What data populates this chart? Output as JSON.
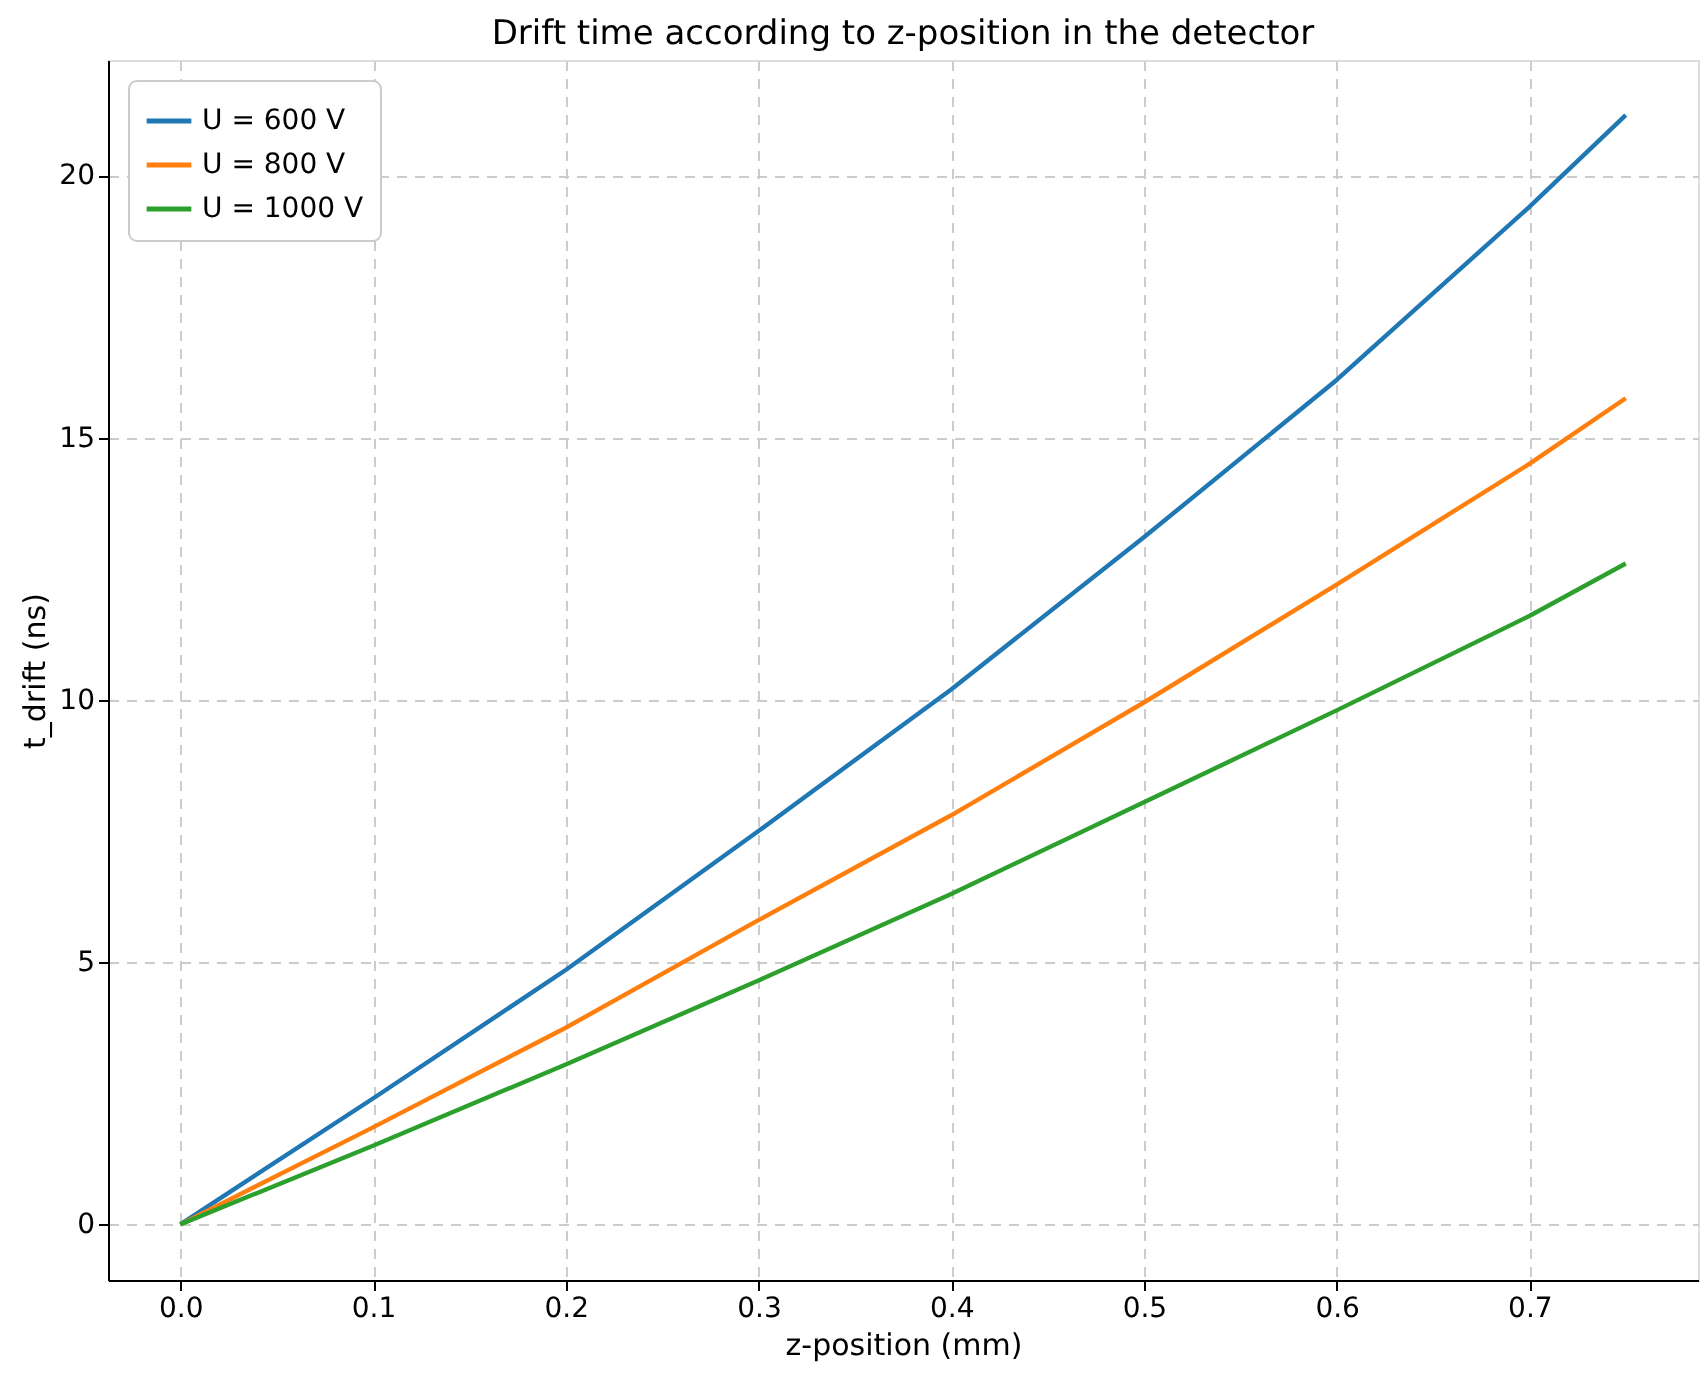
{
  "chart_data": {
    "type": "line",
    "title": "Drift time according to z-position in the detector",
    "xlabel": "z-position (mm)",
    "ylabel": "t_drift (ns)",
    "x": [
      0.0,
      0.1,
      0.2,
      0.3,
      0.4,
      0.5,
      0.6,
      0.7,
      0.75
    ],
    "series": [
      {
        "name": "U = 600 V",
        "color": "#1f77b4",
        "values": [
          0,
          2.4,
          4.85,
          7.5,
          10.2,
          13.1,
          16.1,
          19.4,
          21.15
        ]
      },
      {
        "name": "U = 800 V",
        "color": "#ff7f0e",
        "values": [
          0,
          1.85,
          3.75,
          5.8,
          7.8,
          9.95,
          12.2,
          14.5,
          15.75
        ]
      },
      {
        "name": "U = 1000 V",
        "color": "#2ca02c",
        "values": [
          0,
          1.5,
          3.05,
          4.65,
          6.3,
          8.05,
          9.8,
          11.6,
          12.6
        ]
      }
    ],
    "xlim": [
      -0.0375,
      0.7875
    ],
    "ylim": [
      -1.06,
      22.2
    ],
    "xticks": [
      {
        "value": 0,
        "label": "0.0"
      },
      0.1,
      0.2,
      0.3,
      0.4,
      0.5,
      0.6,
      0.7
    ],
    "yticks": [
      0,
      5,
      10,
      15,
      20
    ],
    "grid": true,
    "legend": "top left",
    "marker": "none",
    "line_style": "solid"
  }
}
